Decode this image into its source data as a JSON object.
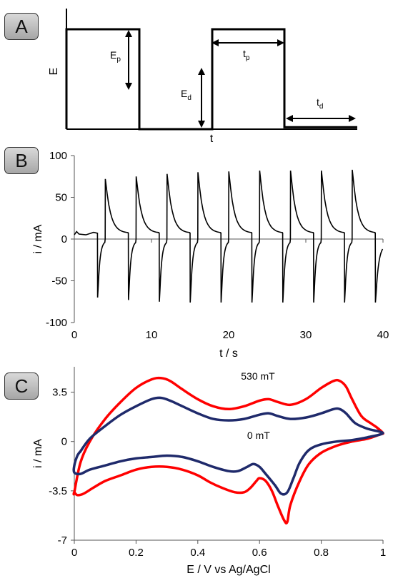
{
  "panels": {
    "a": {
      "label": "A"
    },
    "b": {
      "label": "B"
    },
    "c": {
      "label": "C"
    }
  },
  "chart_data": [
    {
      "type": "line",
      "panel": "A",
      "xlabel": "t",
      "ylabel": "E",
      "annotations": {
        "ep": {
          "main": "E",
          "sub": "p"
        },
        "ed": {
          "main": "E",
          "sub": "d"
        },
        "tp": {
          "main": "t",
          "sub": "p"
        },
        "td": {
          "main": "t",
          "sub": "d"
        }
      },
      "waveform": {
        "x": [
          0,
          0,
          1,
          1,
          2,
          2,
          3,
          3,
          4
        ],
        "y": [
          0,
          1,
          1,
          0,
          0,
          1,
          1,
          0.02,
          0.02
        ]
      },
      "colors": {
        "line": "#000000"
      }
    },
    {
      "type": "line",
      "panel": "B",
      "xlabel": "t / s",
      "ylabel": "i / mA",
      "xlim": [
        0,
        40
      ],
      "ylim": [
        -100,
        100
      ],
      "xticks": [
        "0",
        "10",
        "20",
        "30",
        "40"
      ],
      "yticks": [
        "100",
        "50",
        "0",
        "-50",
        "-100"
      ],
      "pulses": {
        "on_times": [
          4,
          8,
          12,
          16,
          20,
          24,
          28,
          32,
          36
        ],
        "on_peaks": [
          72,
          75,
          78,
          80,
          81,
          82,
          82,
          82,
          83
        ],
        "off_times": [
          3,
          7,
          11,
          15,
          19,
          23,
          27,
          31,
          35,
          39
        ],
        "off_peaks": [
          -70,
          -73,
          -75,
          -76,
          -76,
          -76,
          -76,
          -76,
          -76,
          -76
        ],
        "baseline_on": 7,
        "baseline_off": 5,
        "end": [
          40,
          -12
        ]
      },
      "colors": {
        "line": "#000000"
      }
    },
    {
      "type": "line",
      "panel": "C",
      "xlabel": "E / V vs Ag/AgCl",
      "ylabel": "i / mA",
      "xlim": [
        0,
        1
      ],
      "ylim": [
        -7,
        5.3
      ],
      "xticks": [
        "0",
        "0.2",
        "0.4",
        "0.6",
        "0.8",
        "1"
      ],
      "yticks": [
        "3.5",
        "0",
        "-3.5",
        "-7"
      ],
      "series": [
        {
          "name": "530 mT",
          "color": "#ff0000",
          "x": [
            0.0,
            0.02,
            0.05,
            0.1,
            0.15,
            0.2,
            0.25,
            0.28,
            0.31,
            0.35,
            0.4,
            0.45,
            0.5,
            0.55,
            0.6,
            0.63,
            0.66,
            0.7,
            0.75,
            0.8,
            0.84,
            0.86,
            0.88,
            0.9,
            0.93,
            0.96,
            0.98,
            1.0,
            0.99,
            0.95,
            0.9,
            0.85,
            0.8,
            0.76,
            0.73,
            0.7,
            0.69,
            0.68,
            0.66,
            0.64,
            0.62,
            0.6,
            0.59,
            0.57,
            0.55,
            0.52,
            0.48,
            0.44,
            0.4,
            0.35,
            0.3,
            0.25,
            0.2,
            0.15,
            0.1,
            0.06,
            0.03,
            0.01,
            0.0
          ],
          "y": [
            -3.6,
            -1.5,
            0.0,
            1.6,
            2.8,
            3.8,
            4.4,
            4.5,
            4.3,
            3.7,
            3.0,
            2.5,
            2.3,
            2.5,
            2.9,
            3.0,
            2.8,
            2.6,
            3.0,
            3.8,
            4.3,
            4.3,
            3.9,
            3.0,
            1.8,
            1.3,
            1.0,
            0.6,
            0.5,
            0.2,
            0.0,
            -0.3,
            -0.8,
            -1.6,
            -2.8,
            -4.5,
            -5.7,
            -5.6,
            -4.6,
            -3.5,
            -2.8,
            -2.6,
            -2.8,
            -3.3,
            -3.6,
            -3.6,
            -3.3,
            -2.9,
            -2.4,
            -2.0,
            -1.8,
            -1.8,
            -2.0,
            -2.4,
            -2.8,
            -3.3,
            -3.7,
            -3.8,
            -3.6
          ]
        },
        {
          "name": "0 mT",
          "color": "#1f2a6b",
          "x": [
            0.02,
            0.05,
            0.1,
            0.15,
            0.2,
            0.25,
            0.28,
            0.31,
            0.35,
            0.4,
            0.45,
            0.5,
            0.55,
            0.6,
            0.63,
            0.66,
            0.7,
            0.75,
            0.8,
            0.84,
            0.86,
            0.88,
            0.91,
            0.95,
            1.0,
            0.95,
            0.9,
            0.85,
            0.8,
            0.76,
            0.73,
            0.71,
            0.69,
            0.67,
            0.65,
            0.62,
            0.6,
            0.58,
            0.56,
            0.53,
            0.5,
            0.45,
            0.4,
            0.35,
            0.3,
            0.25,
            0.2,
            0.15,
            0.1,
            0.05,
            0.02,
            0.0,
            0.0,
            0.01,
            0.02
          ],
          "y": [
            -0.7,
            0.2,
            1.1,
            1.9,
            2.5,
            3.0,
            3.1,
            2.9,
            2.5,
            2.0,
            1.6,
            1.5,
            1.6,
            1.9,
            2.0,
            1.8,
            1.6,
            1.7,
            2.0,
            2.3,
            2.3,
            2.0,
            1.3,
            0.9,
            0.6,
            0.3,
            0.1,
            0.0,
            -0.2,
            -0.6,
            -1.5,
            -2.6,
            -3.6,
            -3.7,
            -3.1,
            -2.3,
            -1.8,
            -1.6,
            -1.8,
            -2.1,
            -2.1,
            -1.8,
            -1.4,
            -1.1,
            -1.0,
            -1.1,
            -1.2,
            -1.4,
            -1.7,
            -2.0,
            -2.3,
            -2.2,
            -1.7,
            -1.0,
            -0.7
          ]
        }
      ],
      "annotations": {
        "label_530": "530 mT",
        "label_0": "0 mT"
      },
      "grid": false,
      "legend": "inline-annotations"
    }
  ]
}
